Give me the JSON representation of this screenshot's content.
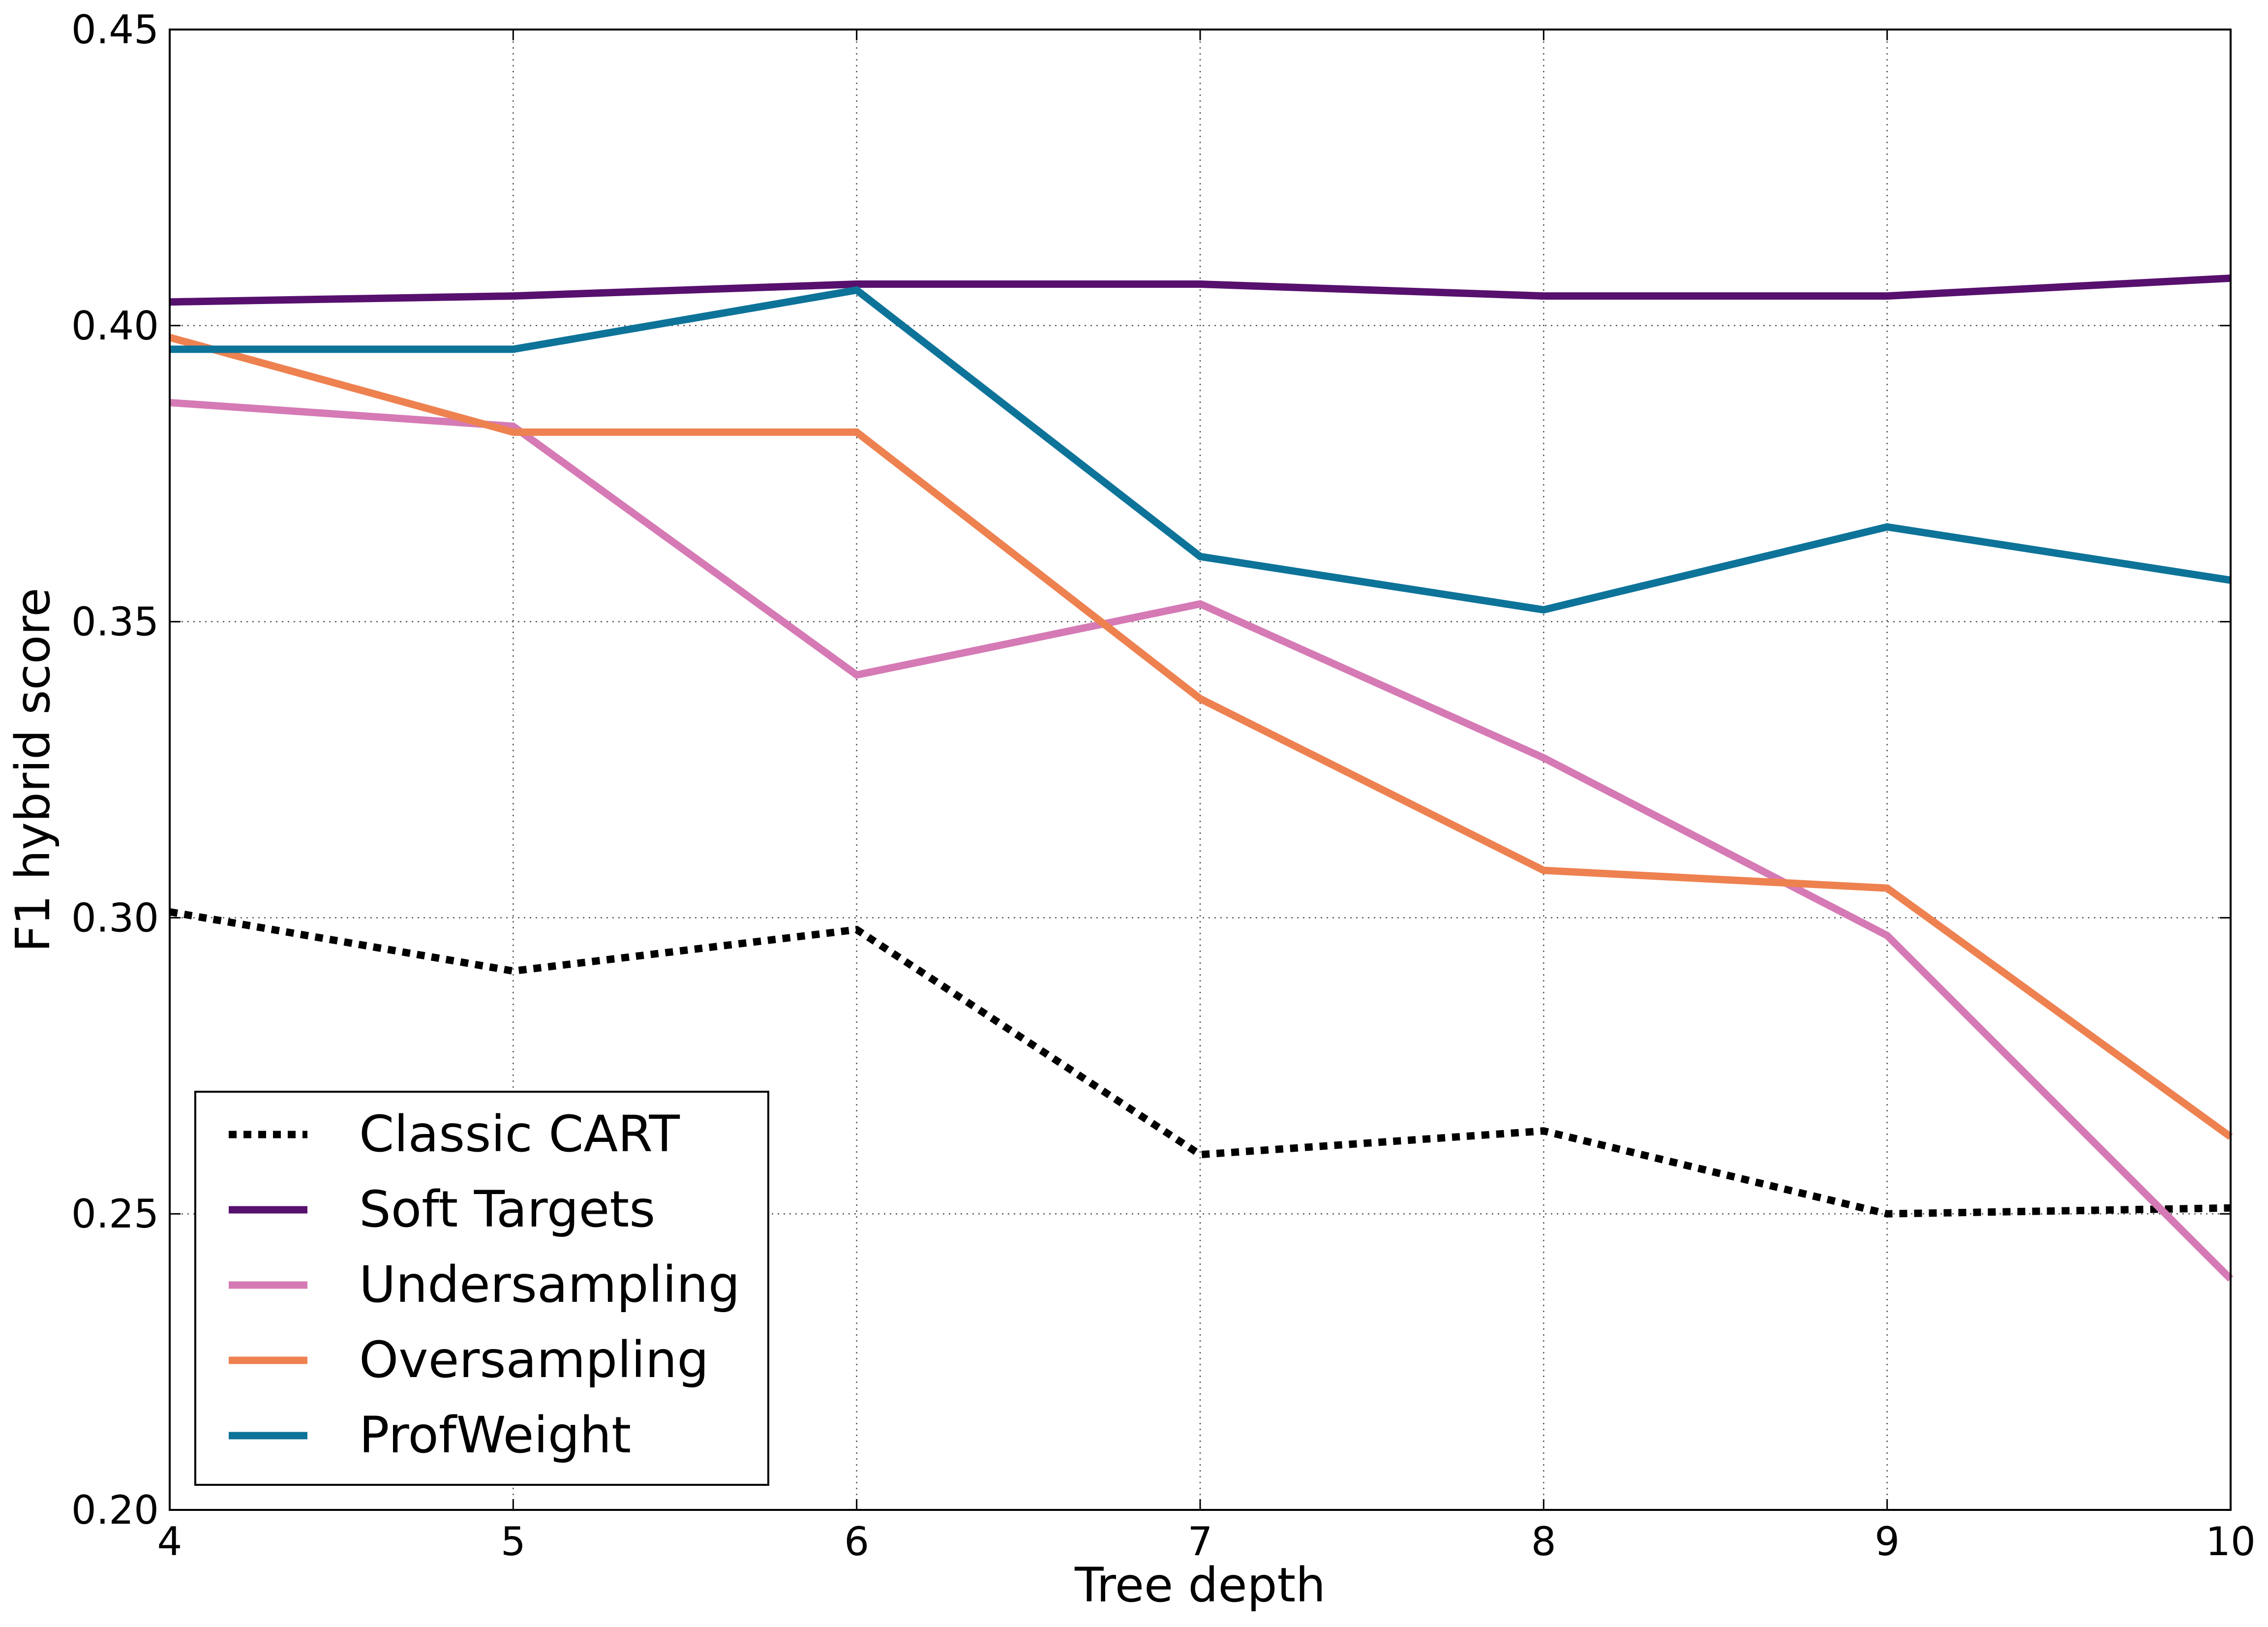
{
  "chart_data": {
    "type": "line",
    "title": "",
    "xlabel": "Tree depth",
    "ylabel": "F1 hybrid score",
    "x": [
      4,
      5,
      6,
      7,
      8,
      9,
      10
    ],
    "xlim": [
      4,
      10
    ],
    "ylim": [
      0.2,
      0.45
    ],
    "xticks": [
      4,
      5,
      6,
      7,
      8,
      9,
      10
    ],
    "xtick_labels": [
      "4",
      "5",
      "6",
      "7",
      "8",
      "9",
      "10"
    ],
    "yticks": [
      0.2,
      0.25,
      0.3,
      0.35,
      0.4,
      0.45
    ],
    "ytick_labels": [
      "0.20",
      "0.25",
      "0.30",
      "0.35",
      "0.40",
      "0.45"
    ],
    "grid": true,
    "legend_position": "lower-left",
    "series": [
      {
        "name": "Classic CART",
        "color": "#000000",
        "dashed": true,
        "values": [
          0.301,
          0.291,
          0.298,
          0.26,
          0.264,
          0.25,
          0.251
        ]
      },
      {
        "name": "Soft Targets",
        "color": "#57106e",
        "dashed": false,
        "values": [
          0.404,
          0.405,
          0.407,
          0.407,
          0.405,
          0.405,
          0.408
        ]
      },
      {
        "name": "Undersampling",
        "color": "#d57ab5",
        "dashed": false,
        "values": [
          0.387,
          0.383,
          0.341,
          0.353,
          0.327,
          0.297,
          0.239
        ]
      },
      {
        "name": "Oversampling",
        "color": "#ee8150",
        "dashed": false,
        "values": [
          0.398,
          0.382,
          0.382,
          0.337,
          0.308,
          0.305,
          0.263
        ]
      },
      {
        "name": "ProfWeight",
        "color": "#0d7399",
        "dashed": false,
        "values": [
          0.396,
          0.396,
          0.406,
          0.361,
          0.352,
          0.366,
          0.357
        ]
      }
    ]
  }
}
